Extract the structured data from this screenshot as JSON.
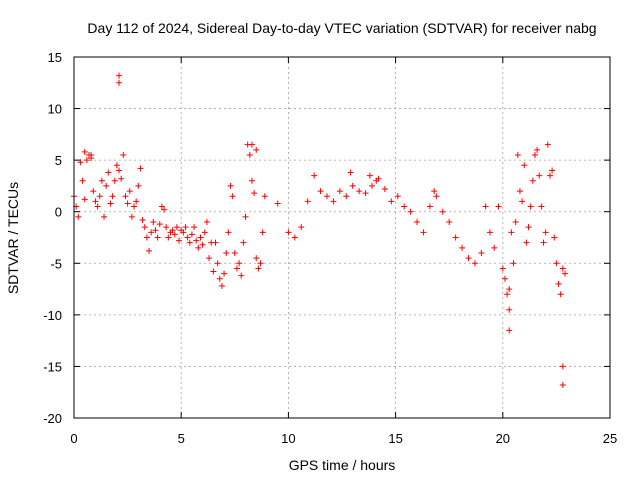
{
  "chart_data": {
    "type": "scatter",
    "title": "Day 112 of 2024, Sidereal Day-to-day VTEC variation (SDTVAR) for receiver nabg",
    "xlabel": "GPS time / hours",
    "ylabel": "SDTVAR / TECUs",
    "xlim": [
      0,
      25
    ],
    "ylim": [
      -20,
      15
    ],
    "xticks": [
      0,
      5,
      10,
      15,
      20,
      25
    ],
    "yticks": [
      15,
      10,
      5,
      0,
      -5,
      -10,
      -15,
      -20
    ],
    "xtick_labels": [
      "0",
      "5",
      "10",
      "15",
      "20",
      "25"
    ],
    "ytick_labels": [
      "15",
      "10",
      "5",
      "0",
      "-5",
      "-10",
      "-15",
      "-20"
    ],
    "grid": true,
    "marker": "+",
    "color": "#ff0000",
    "series": [
      {
        "name": "SDTVAR",
        "x": [
          0.0,
          0.1,
          0.2,
          0.3,
          0.4,
          0.5,
          0.6,
          0.7,
          0.8,
          0.9,
          1.0,
          1.1,
          1.2,
          1.3,
          1.4,
          1.5,
          1.6,
          1.7,
          1.8,
          1.9,
          2.0,
          2.1,
          2.2,
          2.3,
          2.4,
          2.5,
          2.6,
          2.7,
          2.8,
          2.9,
          3.0,
          3.1,
          3.2,
          3.3,
          3.4,
          3.5,
          3.6,
          3.7,
          3.8,
          3.9,
          4.0,
          4.1,
          4.2,
          4.3,
          4.4,
          4.5,
          4.6,
          4.7,
          4.8,
          4.9,
          5.0,
          5.1,
          5.2,
          5.3,
          5.4,
          5.5,
          5.6,
          5.7,
          5.8,
          5.9,
          6.0,
          6.1,
          6.2,
          6.3,
          6.4,
          6.5,
          6.6,
          6.7,
          6.8,
          6.9,
          7.0,
          7.1,
          7.2,
          7.3,
          7.4,
          7.5,
          7.6,
          7.7,
          7.8,
          7.9,
          8.0,
          8.1,
          8.2,
          8.3,
          8.4,
          8.5,
          8.6,
          8.7,
          8.8,
          8.9,
          9.5,
          10.0,
          10.3,
          10.6,
          10.9,
          11.2,
          11.5,
          11.8,
          12.1,
          12.4,
          12.7,
          13.0,
          13.3,
          13.6,
          13.9,
          14.2,
          14.5,
          14.8,
          15.1,
          15.4,
          15.7,
          16.0,
          16.3,
          16.6,
          16.9,
          17.2,
          17.5,
          17.8,
          18.1,
          18.4,
          18.7,
          19.0,
          19.2,
          19.4,
          19.6,
          19.8,
          20.0,
          20.1,
          20.2,
          20.3,
          20.4,
          20.5,
          20.6,
          20.7,
          20.8,
          20.9,
          21.0,
          21.1,
          21.2,
          21.3,
          21.4,
          21.5,
          21.6,
          21.7,
          21.8,
          21.9,
          22.0,
          22.1,
          22.2,
          22.3,
          22.4,
          22.5,
          22.6,
          22.7,
          22.8,
          22.9,
          2.1,
          2.1,
          20.3,
          20.3,
          22.8,
          22.8,
          8.3,
          8.5,
          0.5,
          0.8,
          13.8,
          14.1,
          12.9,
          16.8
        ],
        "y": [
          1.5,
          0.5,
          -0.5,
          4.8,
          3.0,
          1.2,
          5.0,
          5.5,
          5.2,
          2.0,
          1.0,
          0.5,
          1.5,
          3.0,
          -0.5,
          2.5,
          3.8,
          0.8,
          1.5,
          3.0,
          4.5,
          4.0,
          3.2,
          5.5,
          1.5,
          0.8,
          2.0,
          -0.5,
          0.5,
          1.0,
          2.5,
          4.2,
          -0.8,
          -1.5,
          -2.5,
          -3.8,
          -2.0,
          -1.0,
          -1.8,
          -2.5,
          -1.2,
          0.5,
          0.2,
          -1.5,
          -2.5,
          -2.0,
          -1.8,
          -2.2,
          -1.5,
          -2.8,
          -1.8,
          -2.0,
          -1.5,
          -2.5,
          -3.0,
          -2.2,
          -1.5,
          -2.8,
          -3.5,
          -2.5,
          -3.2,
          -2.0,
          -1.0,
          -4.5,
          -3.0,
          -5.8,
          -3.0,
          -5.0,
          -6.5,
          -7.2,
          -6.0,
          -4.0,
          -2.0,
          2.5,
          1.5,
          -4.0,
          -5.5,
          -5.0,
          -6.2,
          -3.0,
          -0.5,
          6.5,
          5.5,
          3.0,
          1.8,
          -4.5,
          -5.5,
          -5.0,
          -2.0,
          1.5,
          0.8,
          -2.0,
          -2.5,
          -1.5,
          1.0,
          3.5,
          2.0,
          1.5,
          1.0,
          2.0,
          1.5,
          2.5,
          2.0,
          1.8,
          2.5,
          3.2,
          2.2,
          1.0,
          1.5,
          0.5,
          0.0,
          -1.0,
          -2.0,
          0.5,
          1.5,
          0.0,
          -1.0,
          -2.5,
          -3.5,
          -4.5,
          -5.0,
          -4.0,
          0.5,
          -2.0,
          -3.5,
          0.5,
          -5.5,
          -6.5,
          -8.0,
          -7.5,
          -2.0,
          -5.0,
          -1.0,
          5.5,
          2.0,
          1.0,
          4.5,
          -3.0,
          -1.5,
          0.5,
          3.0,
          5.5,
          6.0,
          3.5,
          0.5,
          -3.0,
          -2.0,
          6.5,
          3.5,
          4.0,
          -2.5,
          -5.0,
          -7.0,
          -8.0,
          -5.5,
          -6.0,
          13.2,
          12.5,
          -9.5,
          -11.5,
          -15.0,
          -16.8,
          6.5,
          6.0,
          5.8,
          5.5,
          3.5,
          3.0,
          3.8,
          2.0
        ]
      }
    ]
  }
}
